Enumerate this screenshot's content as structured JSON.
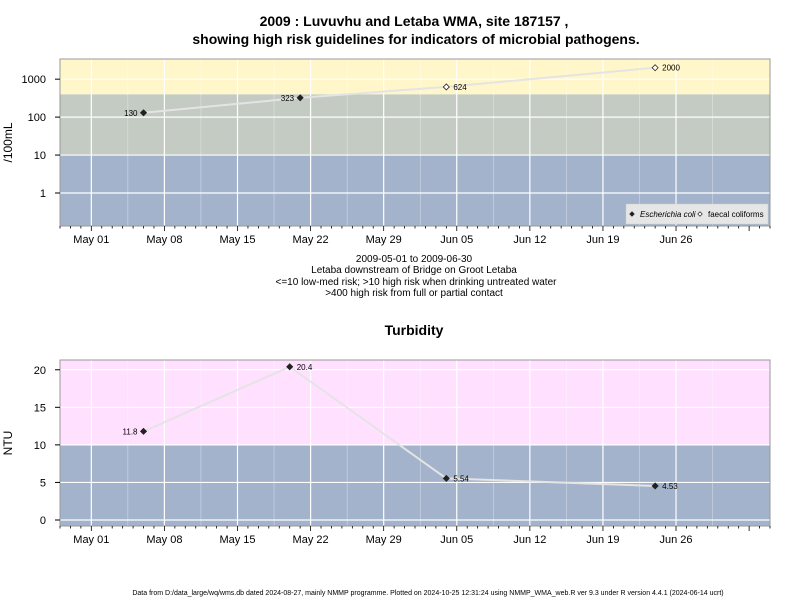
{
  "chart_data": [
    {
      "type": "scatter",
      "title_lines": [
        "2009 : Luvuvhu and Letaba WMA, site 187157 ,",
        "showing high risk guidelines for indicators of microbial pathogens."
      ],
      "xlabel": "",
      "ylabel": "/100mL",
      "y_scale": "log",
      "xlim": [
        "2009-04-28",
        "2009-07-05"
      ],
      "ylim": [
        0.135,
        3400
      ],
      "x_ticks": [
        {
          "date": "2009-05-01",
          "label": "May 01"
        },
        {
          "date": "2009-05-08",
          "label": "May 08"
        },
        {
          "date": "2009-05-15",
          "label": "May 15"
        },
        {
          "date": "2009-05-22",
          "label": "May 22"
        },
        {
          "date": "2009-05-29",
          "label": "May 29"
        },
        {
          "date": "2009-06-05",
          "label": "Jun 05"
        },
        {
          "date": "2009-06-12",
          "label": "Jun 12"
        },
        {
          "date": "2009-06-19",
          "label": "Jun 19"
        },
        {
          "date": "2009-06-26",
          "label": "Jun 26"
        }
      ],
      "y_ticks": [
        {
          "value": 1,
          "label": "1"
        },
        {
          "value": 10,
          "label": "10"
        },
        {
          "value": 100,
          "label": "100"
        },
        {
          "value": 1000,
          "label": "1000"
        }
      ],
      "bands": [
        {
          "from": 0.135,
          "to": 10,
          "color": "#a3b3cc"
        },
        {
          "from": 10,
          "to": 400,
          "color": "#c3cbc3"
        },
        {
          "from": 400,
          "to": 3400,
          "color": "#fff7c9"
        }
      ],
      "series": [
        {
          "name": "Escherichia coli",
          "marker": "filled-diamond",
          "points": [
            {
              "date": "2009-05-06",
              "value": 130,
              "label": "130"
            },
            {
              "date": "2009-05-21",
              "value": 323,
              "label": "323"
            }
          ]
        },
        {
          "name": "faecal coliforms",
          "marker": "open-diamond",
          "points": [
            {
              "date": "2009-06-04",
              "value": 624,
              "label": "624"
            },
            {
              "date": "2009-06-24",
              "value": 2000,
              "label": "2000"
            }
          ]
        }
      ],
      "legend_placement": "bottom-right",
      "grid": true,
      "caption_lines": [
        "2009-05-01 to 2009-06-30",
        "Letaba downstream of Bridge on Groot Letaba",
        "<=10 low-med risk; >10 high risk when drinking untreated water",
        ">400 high risk from full or partial contact"
      ]
    },
    {
      "type": "line",
      "title": "Turbidity",
      "xlabel": "",
      "ylabel": "NTU",
      "xlim": [
        "2009-04-28",
        "2009-07-05"
      ],
      "ylim": [
        -0.8,
        21.3
      ],
      "x_ticks": [
        {
          "date": "2009-05-01",
          "label": "May 01"
        },
        {
          "date": "2009-05-08",
          "label": "May 08"
        },
        {
          "date": "2009-05-15",
          "label": "May 15"
        },
        {
          "date": "2009-05-22",
          "label": "May 22"
        },
        {
          "date": "2009-05-29",
          "label": "May 29"
        },
        {
          "date": "2009-06-05",
          "label": "Jun 05"
        },
        {
          "date": "2009-06-12",
          "label": "Jun 12"
        },
        {
          "date": "2009-06-19",
          "label": "Jun 19"
        },
        {
          "date": "2009-06-26",
          "label": "Jun 26"
        }
      ],
      "y_ticks": [
        {
          "value": 0,
          "label": "0"
        },
        {
          "value": 5,
          "label": "5"
        },
        {
          "value": 10,
          "label": "10"
        },
        {
          "value": 15,
          "label": "15"
        },
        {
          "value": 20,
          "label": "20"
        }
      ],
      "bands": [
        {
          "from": -0.8,
          "to": 10,
          "color": "#a3b3cc"
        },
        {
          "from": 10,
          "to": 21.3,
          "color": "#ffe0ff"
        }
      ],
      "series": [
        {
          "name": "",
          "marker": "filled-diamond",
          "points": [
            {
              "date": "2009-05-06",
              "value": 11.8,
              "label": "11.8"
            },
            {
              "date": "2009-05-20",
              "value": 20.4,
              "label": "20.4"
            },
            {
              "date": "2009-06-04",
              "value": 5.54,
              "label": "5.54"
            },
            {
              "date": "2009-06-24",
              "value": 4.53,
              "label": "4.53"
            }
          ]
        }
      ],
      "grid": true
    }
  ],
  "footer": "Data from D:/data_large/wq/wms.db dated 2024-08-27, mainly NMMP programme. Plotted on 2024-10-25 12:31:24 using NMMP_WMA_web.R ver 9.3 under R version 4.4.1 (2024-06-14 ucrt)"
}
